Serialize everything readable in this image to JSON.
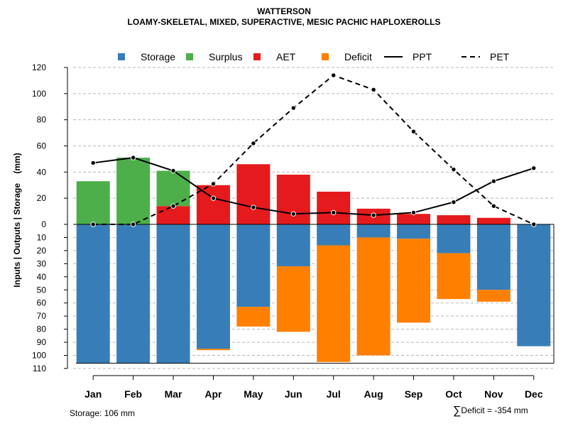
{
  "chart_data": {
    "type": "bar",
    "title": "WATTERSON",
    "subtitle": "LOAMY-SKELETAL, MIXED, SUPERACTIVE, MESIC PACHIC HAPLOXEROLLS",
    "ylabel": "Inputs | Outputs | Storage    (mm)",
    "xlabel": "",
    "ylim_top": [
      0,
      120
    ],
    "ylim_bottom": [
      0,
      110
    ],
    "yticks_top": [
      "0",
      "20",
      "40",
      "60",
      "80",
      "100",
      "120"
    ],
    "yticks_bottom": [
      "10",
      "20",
      "30",
      "40",
      "50",
      "60",
      "70",
      "80",
      "90",
      "100",
      "110"
    ],
    "categories": [
      "Jan",
      "Feb",
      "Mar",
      "Apr",
      "May",
      "Jun",
      "Jul",
      "Aug",
      "Sep",
      "Oct",
      "Nov",
      "Dec"
    ],
    "legend": [
      {
        "name": "Storage",
        "kind": "box",
        "color": "#377eb8"
      },
      {
        "name": "Surplus",
        "kind": "box",
        "color": "#4daf4a"
      },
      {
        "name": "AET",
        "kind": "box",
        "color": "#e41a1c"
      },
      {
        "name": "Deficit",
        "kind": "box",
        "color": "#ff7f00"
      },
      {
        "name": "PPT",
        "kind": "solid",
        "color": "#000000"
      },
      {
        "name": "PET",
        "kind": "dashed",
        "color": "#000000"
      }
    ],
    "series": [
      {
        "name": "Surplus",
        "color": "#4daf4a",
        "values": [
          33,
          51,
          27,
          0,
          0,
          0,
          0,
          0,
          0,
          0,
          0,
          0
        ]
      },
      {
        "name": "AET",
        "color": "#e41a1c",
        "values": [
          0,
          0,
          14,
          30,
          46,
          38,
          25,
          12,
          8,
          7,
          5,
          0
        ]
      },
      {
        "name": "Storage",
        "color": "#377eb8",
        "values": [
          106,
          106,
          106,
          95,
          63,
          32,
          16,
          10,
          11,
          22,
          50,
          93
        ]
      },
      {
        "name": "Deficit",
        "color": "#ff7f00",
        "values": [
          0,
          0,
          0,
          1,
          15,
          50,
          89,
          90,
          64,
          35,
          9,
          0
        ]
      },
      {
        "name": "PPT",
        "color": "#000000",
        "values": [
          47,
          51,
          41,
          20,
          13,
          8,
          9,
          7,
          9,
          17,
          33,
          43
        ]
      },
      {
        "name": "PET",
        "color": "#000000",
        "values": [
          0,
          0,
          14,
          31,
          62,
          89,
          114,
          103,
          71,
          42,
          14,
          0
        ]
      }
    ]
  },
  "footer": {
    "storage_note": "Storage: 106 mm",
    "deficit_symbol": "∑",
    "deficit_note": "Deficit = -354 mm"
  }
}
